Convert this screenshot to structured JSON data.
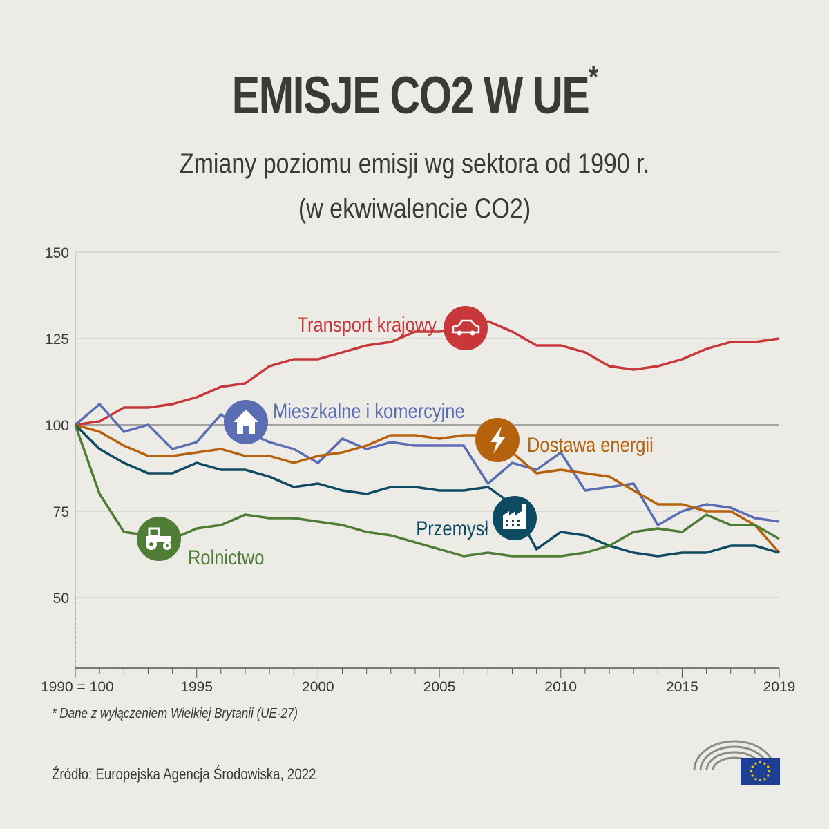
{
  "title": "EMISJE CO2 W UE",
  "title_asterisk": "*",
  "subtitle_line1": "Zmiany poziomu emisji wg sektora od 1990 r.",
  "subtitle_line2": "(w ekwiwalencie CO2)",
  "footnote": "* Dane z wyłączeniem Wielkiej Brytanii (UE-27)",
  "source": "Źródło: Europejska Agencja Środowiska, 2022",
  "chart_data": {
    "type": "line",
    "ylim": [
      30,
      150
    ],
    "yticks": [
      50,
      75,
      100,
      125,
      150
    ],
    "xlim": [
      1990,
      2019
    ],
    "xtick_labels": [
      "1990 = 100",
      "1995",
      "2000",
      "2005",
      "2010",
      "2015",
      "2019"
    ],
    "xticks": [
      1990,
      1995,
      2000,
      2005,
      2010,
      2015,
      2019
    ],
    "grid": true,
    "x": [
      1990,
      1991,
      1992,
      1993,
      1994,
      1995,
      1996,
      1997,
      1998,
      1999,
      2000,
      2001,
      2002,
      2003,
      2004,
      2005,
      2006,
      2007,
      2008,
      2009,
      2010,
      2011,
      2012,
      2013,
      2014,
      2015,
      2016,
      2017,
      2018,
      2019
    ],
    "series": [
      {
        "name": "Transport krajowy",
        "color": "#c8373a",
        "icon": "car-icon",
        "values": [
          100,
          101,
          105,
          105,
          106,
          108,
          111,
          112,
          117,
          119,
          119,
          121,
          123,
          124,
          127,
          127,
          128,
          130,
          127,
          123,
          123,
          121,
          117,
          116,
          117,
          119,
          122,
          124,
          124,
          125
        ]
      },
      {
        "name": "Mieszkalne i komercyjne",
        "color": "#5b6db3",
        "icon": "house-icon",
        "values": [
          100,
          106,
          98,
          100,
          93,
          95,
          103,
          98,
          95,
          93,
          89,
          96,
          93,
          95,
          94,
          94,
          94,
          83,
          89,
          87,
          92,
          81,
          82,
          83,
          71,
          75,
          77,
          76,
          73,
          72
        ]
      },
      {
        "name": "Dostawa energii",
        "color": "#b5620f",
        "icon": "lightning-icon",
        "values": [
          100,
          98,
          94,
          91,
          91,
          92,
          93,
          91,
          91,
          89,
          91,
          92,
          94,
          97,
          97,
          96,
          97,
          97,
          92,
          86,
          87,
          86,
          85,
          81,
          77,
          77,
          75,
          75,
          71,
          63
        ]
      },
      {
        "name": "Przemysł",
        "color": "#0f4a63",
        "icon": "factory-icon",
        "values": [
          100,
          93,
          89,
          86,
          86,
          89,
          87,
          87,
          85,
          82,
          83,
          81,
          80,
          82,
          82,
          81,
          81,
          82,
          77,
          64,
          69,
          68,
          65,
          63,
          62,
          63,
          63,
          65,
          65,
          63
        ]
      },
      {
        "name": "Rolnictwo",
        "color": "#4f7d35",
        "icon": "tractor-icon",
        "values": [
          100,
          80,
          69,
          68,
          67,
          70,
          71,
          74,
          73,
          73,
          72,
          71,
          69,
          68,
          66,
          64,
          62,
          63,
          62,
          62,
          62,
          63,
          65,
          69,
          70,
          69,
          74,
          71,
          71,
          67
        ]
      }
    ]
  }
}
